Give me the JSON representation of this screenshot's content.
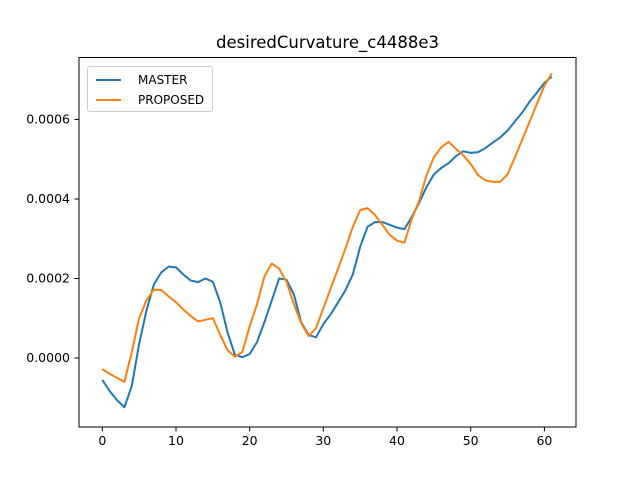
{
  "figure": {
    "title": "desiredCurvature_c4488e3"
  },
  "chart_data": {
    "type": "line",
    "title": "desiredCurvature_c4488e3",
    "xlabel": "",
    "ylabel": "",
    "grid": false,
    "legend_position": "upper left",
    "xlim": [
      -3.16,
      64.29
    ],
    "ylim": [
      -0.0001736,
      0.000756
    ],
    "xticks": [
      {
        "value": 0,
        "label": "0"
      },
      {
        "value": 10,
        "label": "10"
      },
      {
        "value": 20,
        "label": "20"
      },
      {
        "value": 30,
        "label": "30"
      },
      {
        "value": 40,
        "label": "40"
      },
      {
        "value": 50,
        "label": "50"
      },
      {
        "value": 60,
        "label": "60"
      }
    ],
    "yticks": [
      {
        "value": 0.0,
        "label": "0.0000"
      },
      {
        "value": 0.0002,
        "label": "0.0002"
      },
      {
        "value": 0.0004,
        "label": "0.0004"
      },
      {
        "value": 0.0006,
        "label": "0.0006"
      }
    ],
    "x": [
      0,
      1,
      2,
      3,
      4,
      5,
      6,
      7,
      8,
      9,
      10,
      11,
      12,
      13,
      14,
      15,
      16,
      17,
      18,
      19,
      20,
      21,
      22,
      23,
      24,
      25,
      26,
      27,
      28,
      29,
      30,
      31,
      32,
      33,
      34,
      35,
      36,
      37,
      38,
      39,
      40,
      41,
      42,
      43,
      44,
      45,
      46,
      47,
      48,
      49,
      50,
      51,
      52,
      53,
      54,
      55,
      56,
      57,
      58,
      59,
      60,
      61
    ],
    "series": [
      {
        "name": "MASTER",
        "color": "#1f77b4",
        "values": [
          -5.5e-05,
          -8.3e-05,
          -0.000106,
          -0.000124,
          -7e-05,
          3.5e-05,
          0.00012,
          0.000185,
          0.000215,
          0.00023,
          0.000228,
          0.00021,
          0.000195,
          0.000191,
          0.0002,
          0.000192,
          0.00014,
          6.5e-05,
          8e-06,
          2e-06,
          1e-05,
          4e-05,
          9e-05,
          0.000145,
          0.0002,
          0.000197,
          0.00016,
          9e-05,
          5.8e-05,
          5.2e-05,
          8.5e-05,
          0.00011,
          0.00014,
          0.00017,
          0.00021,
          0.00028,
          0.00033,
          0.000342,
          0.000342,
          0.000335,
          0.000328,
          0.000324,
          0.000355,
          0.00039,
          0.00043,
          0.000462,
          0.000478,
          0.00049,
          0.000508,
          0.00052,
          0.000516,
          0.000518,
          0.000528,
          0.000542,
          0.000555,
          0.000572,
          0.000595,
          0.000618,
          0.000645,
          0.000668,
          0.000692,
          0.000708
        ]
      },
      {
        "name": "PROPOSED",
        "color": "#ff7f0e",
        "values": [
          -2.8e-05,
          -4e-05,
          -5e-05,
          -6e-05,
          1.5e-05,
          0.0001,
          0.000145,
          0.000172,
          0.000171,
          0.000155,
          0.00014,
          0.000122,
          0.000106,
          9.2e-05,
          9.6e-05,
          0.0001,
          5.8e-05,
          2e-05,
          3e-06,
          1.5e-05,
          8e-05,
          0.000135,
          0.000205,
          0.000238,
          0.000225,
          0.000192,
          0.000135,
          8.8e-05,
          5.5e-05,
          7.5e-05,
          0.000125,
          0.000175,
          0.000225,
          0.000275,
          0.00033,
          0.000372,
          0.000377,
          0.00036,
          0.000335,
          0.00031,
          0.000295,
          0.00029,
          0.00035,
          0.000395,
          0.00046,
          0.000505,
          0.00053,
          0.000544,
          0.000526,
          0.00051,
          0.000488,
          0.00046,
          0.000447,
          0.000443,
          0.000443,
          0.000462,
          0.000505,
          0.00055,
          0.000595,
          0.00064,
          0.000685,
          0.000716
        ]
      }
    ]
  }
}
